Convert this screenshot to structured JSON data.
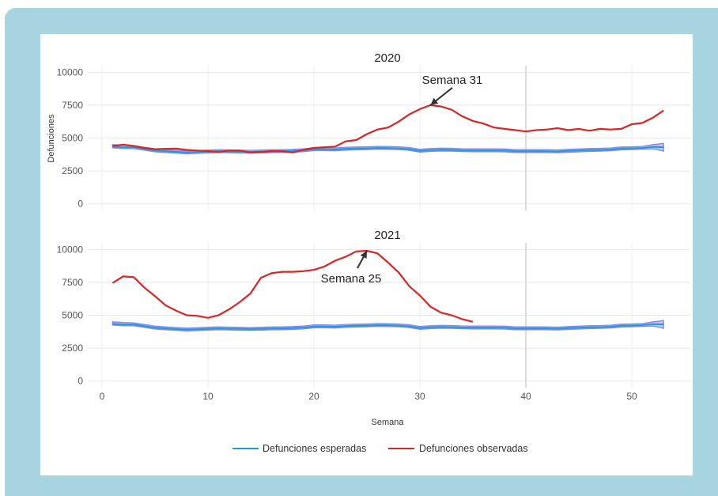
{
  "chart_data": {
    "type": "line",
    "xlabel": "Semana",
    "ylabel": "Defunciones",
    "xlim": [
      0,
      53
    ],
    "ylim": [
      -500,
      10500
    ],
    "xticks": [
      0,
      10,
      20,
      30,
      40,
      50
    ],
    "yticks": [
      0,
      2500,
      5000,
      7500,
      10000
    ],
    "grid": true,
    "vertical_marker_x": 40,
    "legend": {
      "position": "bottom",
      "entries": [
        {
          "name": "Defunciones esperadas",
          "color": "#1f9bd6"
        },
        {
          "name": "Defunciones observadas",
          "color": "#d62728"
        }
      ]
    },
    "colors": {
      "expected": "#1f9bd6",
      "expected_band": "#7b7be8",
      "observed": "#d62728",
      "frame": "#a8d4e0"
    },
    "panels": [
      {
        "title": "2020",
        "annotation": {
          "text": "Semana  31",
          "x": 31,
          "y": 7500
        },
        "expected": {
          "x": [
            1,
            2,
            3,
            4,
            5,
            6,
            7,
            8,
            9,
            10,
            11,
            12,
            13,
            14,
            15,
            16,
            17,
            18,
            19,
            20,
            21,
            22,
            23,
            24,
            25,
            26,
            27,
            28,
            29,
            30,
            31,
            32,
            33,
            34,
            35,
            36,
            37,
            38,
            39,
            40,
            41,
            42,
            43,
            44,
            45,
            46,
            47,
            48,
            49,
            50,
            51,
            52,
            53
          ],
          "y": [
            4350,
            4300,
            4300,
            4180,
            4050,
            4000,
            3950,
            3900,
            3930,
            3970,
            4000,
            3980,
            3960,
            3950,
            3970,
            3990,
            4000,
            4020,
            4060,
            4150,
            4150,
            4130,
            4180,
            4200,
            4220,
            4250,
            4240,
            4220,
            4160,
            4030,
            4080,
            4110,
            4100,
            4070,
            4060,
            4060,
            4060,
            4050,
            4000,
            4000,
            4000,
            4000,
            3980,
            4020,
            4050,
            4080,
            4100,
            4130,
            4200,
            4220,
            4250,
            4320,
            4300
          ],
          "lower": [
            4250,
            4200,
            4200,
            4080,
            3950,
            3900,
            3850,
            3800,
            3830,
            3870,
            3900,
            3880,
            3860,
            3850,
            3870,
            3890,
            3900,
            3920,
            3960,
            4050,
            4050,
            4030,
            4080,
            4100,
            4120,
            4150,
            4140,
            4120,
            4060,
            3930,
            3980,
            4010,
            4000,
            3970,
            3960,
            3960,
            3960,
            3950,
            3900,
            3900,
            3900,
            3900,
            3880,
            3920,
            3950,
            3980,
            4000,
            4030,
            4100,
            4120,
            4150,
            4180,
            4000
          ],
          "upper": [
            4500,
            4450,
            4420,
            4300,
            4170,
            4120,
            4070,
            4020,
            4050,
            4090,
            4120,
            4100,
            4080,
            4070,
            4090,
            4110,
            4120,
            4140,
            4180,
            4270,
            4270,
            4250,
            4300,
            4320,
            4340,
            4370,
            4360,
            4340,
            4280,
            4150,
            4200,
            4230,
            4220,
            4190,
            4180,
            4180,
            4180,
            4170,
            4120,
            4120,
            4120,
            4120,
            4100,
            4140,
            4170,
            4200,
            4220,
            4250,
            4320,
            4340,
            4370,
            4500,
            4600
          ]
        },
        "observed": {
          "x": [
            1,
            2,
            3,
            4,
            5,
            6,
            7,
            8,
            9,
            10,
            11,
            12,
            13,
            14,
            15,
            16,
            17,
            18,
            19,
            20,
            21,
            22,
            23,
            24,
            25,
            26,
            27,
            28,
            29,
            30,
            31,
            32,
            33,
            34,
            35,
            36,
            37,
            38,
            39,
            40,
            41,
            42,
            43,
            44,
            45,
            46,
            47,
            48,
            49,
            50,
            51,
            52,
            53
          ],
          "y": [
            4400,
            4500,
            4400,
            4250,
            4150,
            4180,
            4200,
            4100,
            4050,
            4000,
            3950,
            4050,
            4050,
            3900,
            3950,
            4000,
            4000,
            3900,
            4100,
            4250,
            4300,
            4350,
            4750,
            4850,
            5300,
            5650,
            5800,
            6250,
            6800,
            7200,
            7500,
            7400,
            7150,
            6650,
            6300,
            6100,
            5800,
            5700,
            5600,
            5500,
            5600,
            5650,
            5750,
            5600,
            5700,
            5550,
            5700,
            5650,
            5700,
            6050,
            6150,
            6550,
            7100
          ]
        }
      },
      {
        "title": "2021",
        "annotation": {
          "text": "Semana  25",
          "x": 25,
          "y": 9900
        },
        "expected": {
          "x": [
            1,
            2,
            3,
            4,
            5,
            6,
            7,
            8,
            9,
            10,
            11,
            12,
            13,
            14,
            15,
            16,
            17,
            18,
            19,
            20,
            21,
            22,
            23,
            24,
            25,
            26,
            27,
            28,
            29,
            30,
            31,
            32,
            33,
            34,
            35,
            36,
            37,
            38,
            39,
            40,
            41,
            42,
            43,
            44,
            45,
            46,
            47,
            48,
            49,
            50,
            51,
            52,
            53
          ],
          "y": [
            4350,
            4300,
            4300,
            4180,
            4050,
            4000,
            3950,
            3900,
            3930,
            3970,
            4000,
            3980,
            3960,
            3950,
            3970,
            3990,
            4000,
            4020,
            4060,
            4150,
            4150,
            4130,
            4180,
            4200,
            4220,
            4250,
            4240,
            4220,
            4160,
            4030,
            4080,
            4110,
            4100,
            4070,
            4060,
            4060,
            4060,
            4050,
            4000,
            4000,
            4000,
            4000,
            3980,
            4020,
            4050,
            4080,
            4100,
            4130,
            4200,
            4220,
            4250,
            4320,
            4300
          ],
          "lower": [
            4250,
            4200,
            4200,
            4080,
            3950,
            3900,
            3850,
            3800,
            3830,
            3870,
            3900,
            3880,
            3860,
            3850,
            3870,
            3890,
            3900,
            3920,
            3960,
            4050,
            4050,
            4030,
            4080,
            4100,
            4120,
            4150,
            4140,
            4120,
            4060,
            3930,
            3980,
            4010,
            4000,
            3970,
            3960,
            3960,
            3960,
            3950,
            3900,
            3900,
            3900,
            3900,
            3880,
            3920,
            3950,
            3980,
            4000,
            4030,
            4100,
            4120,
            4150,
            4180,
            4000
          ],
          "upper": [
            4500,
            4450,
            4420,
            4300,
            4170,
            4120,
            4070,
            4020,
            4050,
            4090,
            4120,
            4100,
            4080,
            4070,
            4090,
            4110,
            4120,
            4140,
            4180,
            4270,
            4270,
            4250,
            4300,
            4320,
            4340,
            4370,
            4360,
            4340,
            4280,
            4150,
            4200,
            4230,
            4220,
            4190,
            4180,
            4180,
            4180,
            4170,
            4120,
            4120,
            4120,
            4120,
            4100,
            4140,
            4170,
            4200,
            4220,
            4250,
            4320,
            4340,
            4370,
            4500,
            4600
          ]
        },
        "observed": {
          "x": [
            1,
            2,
            3,
            4,
            5,
            6,
            7,
            8,
            9,
            10,
            11,
            12,
            13,
            14,
            15,
            16,
            17,
            18,
            19,
            20,
            21,
            22,
            23,
            24,
            25,
            26,
            27,
            28,
            29,
            30,
            31,
            32,
            33,
            34,
            35
          ],
          "y": [
            7450,
            7950,
            7900,
            7100,
            6450,
            5750,
            5350,
            5000,
            4950,
            4800,
            5000,
            5450,
            6000,
            6650,
            7850,
            8200,
            8300,
            8300,
            8350,
            8450,
            8700,
            9150,
            9450,
            9850,
            9900,
            9700,
            9000,
            8250,
            7200,
            6500,
            5650,
            5200,
            5000,
            4700,
            4500
          ]
        }
      }
    ]
  }
}
